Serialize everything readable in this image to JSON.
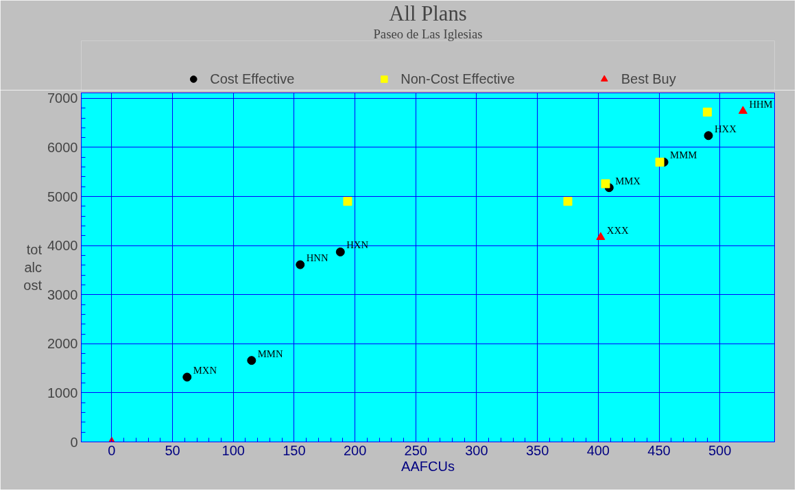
{
  "chart_data": {
    "type": "scatter",
    "title": "All Plans",
    "subtitle": "Paseo de Las Iglesias",
    "xlabel": "AAFCUs",
    "ylabel": "totalcost",
    "xlim": [
      -25,
      545
    ],
    "ylim": [
      0,
      7110
    ],
    "xticks": [
      0,
      50,
      100,
      150,
      200,
      250,
      300,
      350,
      400,
      450,
      500
    ],
    "yticks": [
      0,
      1000,
      2000,
      3000,
      4000,
      5000,
      6000,
      7000
    ],
    "grid": true,
    "legend": "top",
    "series": [
      {
        "name": "Cost Effective",
        "color": "#000000",
        "marker": "circle",
        "x": [
          62,
          115,
          155,
          188,
          409,
          454,
          490.6
        ],
        "values": [
          1320,
          1660,
          3610,
          3870,
          5180,
          5700,
          6240
        ]
      },
      {
        "name": "Non-Cost Effective",
        "color": "#ffff00",
        "marker": "square",
        "x": [
          194,
          375,
          406,
          450.6,
          489.7
        ],
        "values": [
          4900,
          4900,
          5260,
          5700,
          6720
        ]
      },
      {
        "name": "Best Buy",
        "color": "#ff0000",
        "marker": "triangle",
        "x": [
          0,
          402,
          519
        ],
        "values": [
          0,
          4170,
          6740
        ]
      }
    ],
    "annotations": [
      {
        "text": "MXN",
        "x": 62,
        "y": 1320
      },
      {
        "text": "MMN",
        "x": 115,
        "y": 1660
      },
      {
        "text": "HNN",
        "x": 155,
        "y": 3610
      },
      {
        "text": "HXN",
        "x": 188,
        "y": 3870
      },
      {
        "text": "MMX",
        "x": 409,
        "y": 5180
      },
      {
        "text": "MMM",
        "x": 454,
        "y": 5700
      },
      {
        "text": "HXX",
        "x": 490.6,
        "y": 6240
      },
      {
        "text": "XXX",
        "x": 402,
        "y": 4170
      },
      {
        "text": "HHM",
        "x": 519,
        "y": 6740
      }
    ]
  }
}
